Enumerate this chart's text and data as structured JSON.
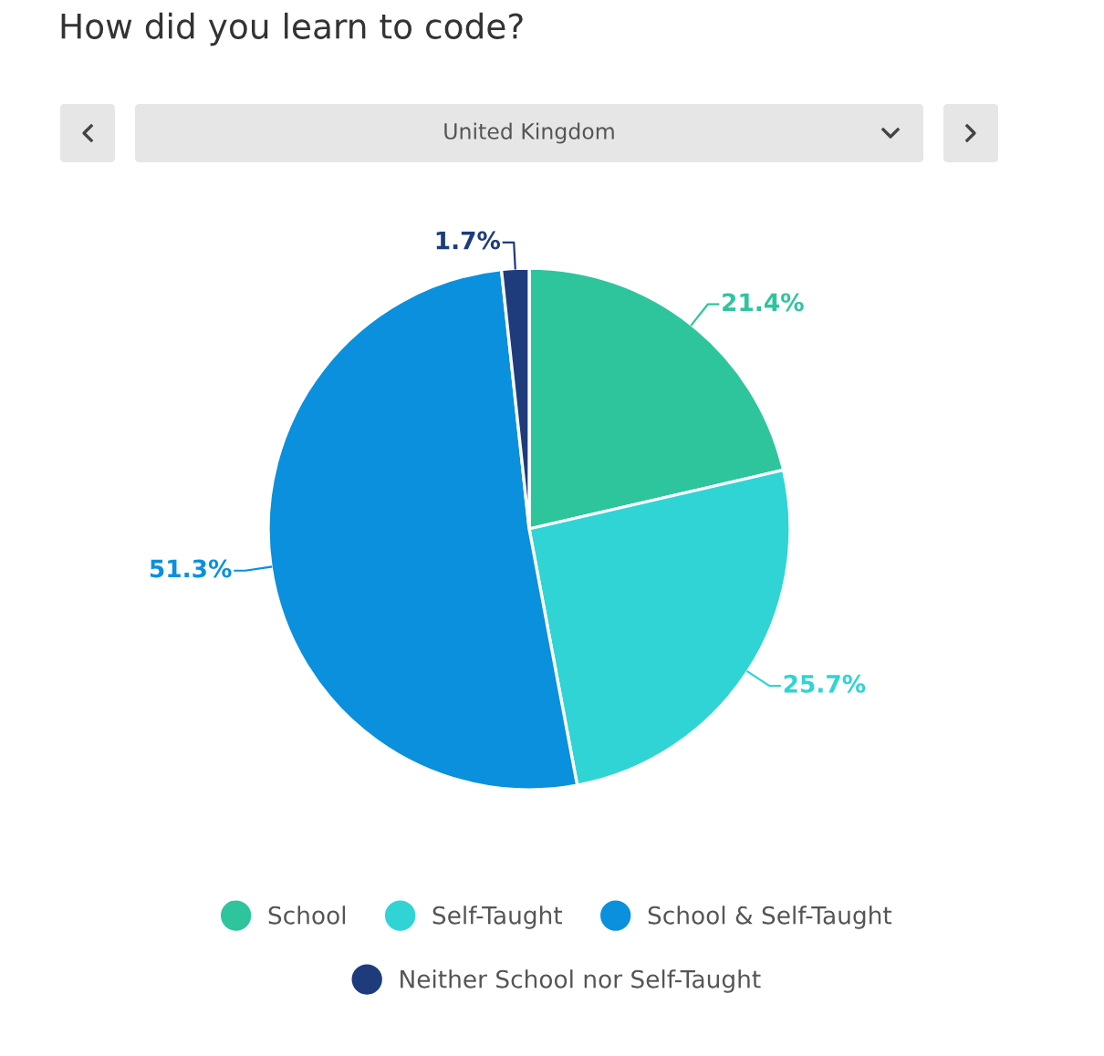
{
  "chart_data": {
    "type": "pie",
    "title": "How did you learn to code?",
    "subtitle": "United Kingdom",
    "categories": [
      "School",
      "Self-Taught",
      "School & Self-Taught",
      "Neither School nor Self-Taught"
    ],
    "values": [
      21.4,
      25.7,
      51.3,
      1.7
    ],
    "value_labels": [
      "21.4%",
      "25.7%",
      "51.3%",
      "1.7%"
    ],
    "colors": [
      "#2ec59d",
      "#30d4d4",
      "#0a90dd",
      "#1e3c7c"
    ],
    "legend": "bottom"
  }
}
